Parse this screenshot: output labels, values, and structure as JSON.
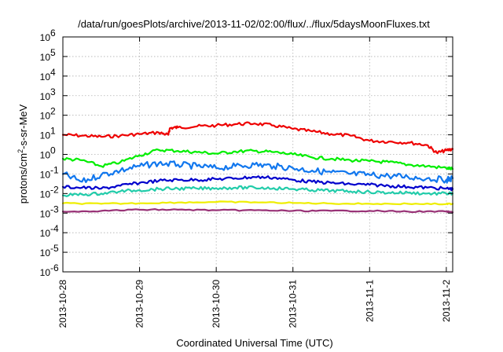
{
  "chart_data": {
    "type": "line",
    "title": "/data/run/goesPlots/archive/2013-11-02/02:00/flux/../flux/5daysMoonFluxes.txt",
    "xlabel": "Coordinated Universal Time (UTC)",
    "ylabel": {
      "base": "protons/cm",
      "superscript": "2",
      "rest": "-s-sr-MeV"
    },
    "xlim": [
      "2013-10-28T00:00",
      "2013-11-02T02:00"
    ],
    "ylim": [
      1e-06,
      1000000.0
    ],
    "yscale": "log",
    "grid": true,
    "x_ticks": [
      "2013-10-28",
      "2013-10-29",
      "2013-10-30",
      "2013-10-31",
      "2013-11-1",
      "2013-11-2"
    ],
    "y_ticks": [
      {
        "value": 1e-06,
        "base": "10",
        "exp": "-6"
      },
      {
        "value": 1e-05,
        "base": "10",
        "exp": "-5"
      },
      {
        "value": 0.0001,
        "base": "10",
        "exp": "-4"
      },
      {
        "value": 0.001,
        "base": "10",
        "exp": "-3"
      },
      {
        "value": 0.01,
        "base": "10",
        "exp": "-2"
      },
      {
        "value": 0.1,
        "base": "10",
        "exp": "-1"
      },
      {
        "value": 1,
        "base": "10",
        "exp": "0"
      },
      {
        "value": 10,
        "base": "10",
        "exp": "1"
      },
      {
        "value": 100,
        "base": "10",
        "exp": "2"
      },
      {
        "value": 1000,
        "base": "10",
        "exp": "3"
      },
      {
        "value": 10000,
        "base": "10",
        "exp": "4"
      },
      {
        "value": 100000,
        "base": "10",
        "exp": "5"
      },
      {
        "value": 1000000,
        "base": "10",
        "exp": "6"
      }
    ],
    "series": [
      {
        "color": "#ee0000",
        "x": [
          "2013-10-28T00:00",
          "2013-10-28T06:00",
          "2013-10-28T12:00",
          "2013-10-28T18:00",
          "2013-10-29T00:00",
          "2013-10-29T06:00",
          "2013-10-29T09:00",
          "2013-10-29T09:30",
          "2013-10-29T12:00",
          "2013-10-29T18:00",
          "2013-10-30T00:00",
          "2013-10-30T06:00",
          "2013-10-30T12:00",
          "2013-10-30T18:00",
          "2013-10-31T00:00",
          "2013-10-31T06:00",
          "2013-10-31T12:00",
          "2013-10-31T18:00",
          "2013-11-01T00:00",
          "2013-11-01T06:00",
          "2013-11-01T12:00",
          "2013-11-01T18:00",
          "2013-11-01T21:00",
          "2013-11-02T00:00",
          "2013-11-02T02:00"
        ],
        "y": [
          10,
          9,
          8,
          9,
          11,
          13,
          10,
          22,
          24,
          27,
          30,
          35,
          38,
          30,
          20,
          15,
          11,
          9,
          5,
          4.5,
          4,
          3,
          1.2,
          1.6,
          1.9
        ]
      },
      {
        "color": "#00ee00",
        "x": [
          "2013-10-28T00:00",
          "2013-10-28T06:00",
          "2013-10-28T12:00",
          "2013-10-28T18:00",
          "2013-10-29T00:00",
          "2013-10-29T06:00",
          "2013-10-29T12:00",
          "2013-10-29T18:00",
          "2013-10-30T00:00",
          "2013-10-30T06:00",
          "2013-10-30T12:00",
          "2013-10-30T18:00",
          "2013-10-31T00:00",
          "2013-10-31T06:00",
          "2013-10-31T12:00",
          "2013-10-31T18:00",
          "2013-11-01T00:00",
          "2013-11-01T06:00",
          "2013-11-01T12:00",
          "2013-11-01T18:00",
          "2013-11-02T00:00",
          "2013-11-02T02:00"
        ],
        "y": [
          0.6,
          0.5,
          0.25,
          0.4,
          0.9,
          1.7,
          1.5,
          1.3,
          1.1,
          1.4,
          1.5,
          1.3,
          1.0,
          0.7,
          0.6,
          0.5,
          0.45,
          0.4,
          0.3,
          0.25,
          0.2,
          0.18
        ]
      },
      {
        "color": "#1177ee",
        "x": [
          "2013-10-28T00:00",
          "2013-10-28T06:00",
          "2013-10-28T12:00",
          "2013-10-28T18:00",
          "2013-10-29T00:00",
          "2013-10-29T06:00",
          "2013-10-29T12:00",
          "2013-10-29T18:00",
          "2013-10-30T00:00",
          "2013-10-30T06:00",
          "2013-10-30T12:00",
          "2013-10-30T18:00",
          "2013-10-31T00:00",
          "2013-10-31T06:00",
          "2013-10-31T12:00",
          "2013-10-31T18:00",
          "2013-11-01T00:00",
          "2013-11-01T06:00",
          "2013-11-01T12:00",
          "2013-11-01T18:00",
          "2013-11-02T00:00",
          "2013-11-02T02:00"
        ],
        "y": [
          0.1,
          0.04,
          0.09,
          0.15,
          0.25,
          0.35,
          0.3,
          0.25,
          0.2,
          0.25,
          0.3,
          0.25,
          0.2,
          0.15,
          0.12,
          0.1,
          0.09,
          0.08,
          0.07,
          0.06,
          0.05,
          0.06
        ]
      },
      {
        "color": "#0000cc",
        "x": [
          "2013-10-28T00:00",
          "2013-10-28T06:00",
          "2013-10-28T12:00",
          "2013-10-28T18:00",
          "2013-10-29T00:00",
          "2013-10-29T06:00",
          "2013-10-29T12:00",
          "2013-10-29T18:00",
          "2013-10-30T00:00",
          "2013-10-30T06:00",
          "2013-10-30T12:00",
          "2013-10-30T18:00",
          "2013-10-31T00:00",
          "2013-10-31T06:00",
          "2013-10-31T12:00",
          "2013-10-31T18:00",
          "2013-11-01T00:00",
          "2013-11-01T06:00",
          "2013-11-01T12:00",
          "2013-11-01T18:00",
          "2013-11-02T00:00",
          "2013-11-02T02:00"
        ],
        "y": [
          0.022,
          0.02,
          0.018,
          0.025,
          0.035,
          0.045,
          0.05,
          0.05,
          0.055,
          0.06,
          0.07,
          0.065,
          0.05,
          0.04,
          0.035,
          0.03,
          0.028,
          0.025,
          0.022,
          0.02,
          0.018,
          0.017
        ]
      },
      {
        "color": "#22ccaa",
        "x": [
          "2013-10-28T00:00",
          "2013-10-28T06:00",
          "2013-10-28T12:00",
          "2013-10-28T18:00",
          "2013-10-29T00:00",
          "2013-10-29T06:00",
          "2013-10-29T12:00",
          "2013-10-29T18:00",
          "2013-10-30T00:00",
          "2013-10-30T06:00",
          "2013-10-30T12:00",
          "2013-10-30T18:00",
          "2013-10-31T00:00",
          "2013-10-31T06:00",
          "2013-10-31T12:00",
          "2013-10-31T18:00",
          "2013-11-01T00:00",
          "2013-11-01T06:00",
          "2013-11-01T12:00",
          "2013-11-01T18:00",
          "2013-11-02T00:00",
          "2013-11-02T02:00"
        ],
        "y": [
          0.008,
          0.009,
          0.01,
          0.013,
          0.015,
          0.017,
          0.018,
          0.018,
          0.019,
          0.02,
          0.02,
          0.019,
          0.017,
          0.015,
          0.014,
          0.013,
          0.012,
          0.011,
          0.011,
          0.01,
          0.01,
          0.01
        ]
      },
      {
        "color": "#eeee00",
        "x": [
          "2013-10-28T00:00",
          "2013-10-28T12:00",
          "2013-10-29T00:00",
          "2013-10-29T12:00",
          "2013-10-30T00:00",
          "2013-10-30T12:00",
          "2013-10-31T00:00",
          "2013-10-31T12:00",
          "2013-11-01T00:00",
          "2013-11-01T12:00",
          "2013-11-02T00:00",
          "2013-11-02T02:00"
        ],
        "y": [
          0.0032,
          0.003,
          0.0032,
          0.0035,
          0.0037,
          0.0036,
          0.0033,
          0.0031,
          0.003,
          0.003,
          0.0029,
          0.003
        ]
      },
      {
        "color": "#993377",
        "x": [
          "2013-10-28T00:00",
          "2013-10-28T12:00",
          "2013-10-29T00:00",
          "2013-10-29T12:00",
          "2013-10-30T00:00",
          "2013-10-30T12:00",
          "2013-10-31T00:00",
          "2013-10-31T12:00",
          "2013-11-01T00:00",
          "2013-11-01T12:00",
          "2013-11-02T00:00",
          "2013-11-02T02:00"
        ],
        "y": [
          0.0012,
          0.0013,
          0.0015,
          0.0015,
          0.0014,
          0.0014,
          0.0013,
          0.0013,
          0.0013,
          0.0012,
          0.0012,
          0.0011
        ]
      }
    ]
  }
}
